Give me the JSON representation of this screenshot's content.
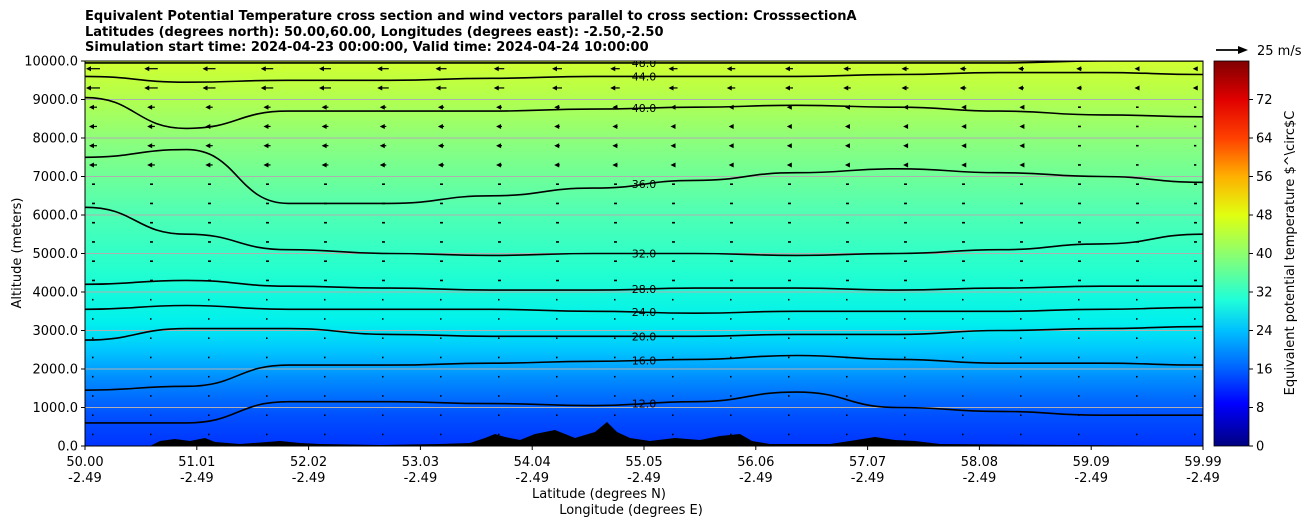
{
  "title_lines": [
    "Equivalent Potential Temperature cross section and wind vectors parallel to cross section: CrosssectionA",
    "Latitudes (degrees north): 50.00,60.00, Longitudes (degrees east): -2.50,-2.50",
    "Simulation start time: 2024-04-23 00:00:00, Valid time: 2024-04-24 10:00:00"
  ],
  "chart_data": {
    "type": "heatmap",
    "title": "Equivalent Potential Temperature cross section and wind vectors parallel to cross section: CrosssectionA",
    "ylabel": "Altitude (meters)",
    "xlabel_lines": [
      "Latitude (degrees N)",
      "Longitude (degrees E)"
    ],
    "ylim": [
      0,
      10000
    ],
    "y_ticks": [
      "0.0",
      "1000.0",
      "2000.0",
      "3000.0",
      "4000.0",
      "5000.0",
      "6000.0",
      "7000.0",
      "8000.0",
      "9000.0",
      "10000.0"
    ],
    "x_ticks": [
      {
        "lat": "50.00",
        "lon": "-2.49"
      },
      {
        "lat": "51.01",
        "lon": "-2.49"
      },
      {
        "lat": "52.02",
        "lon": "-2.49"
      },
      {
        "lat": "53.03",
        "lon": "-2.49"
      },
      {
        "lat": "54.04",
        "lon": "-2.49"
      },
      {
        "lat": "55.05",
        "lon": "-2.49"
      },
      {
        "lat": "56.06",
        "lon": "-2.49"
      },
      {
        "lat": "57.07",
        "lon": "-2.49"
      },
      {
        "lat": "58.08",
        "lon": "-2.49"
      },
      {
        "lat": "59.09",
        "lon": "-2.49"
      },
      {
        "lat": "59.99",
        "lon": "-2.49"
      }
    ],
    "colorbar": {
      "label": "Equivalent potential temperature $^\\circ$C",
      "range": [
        0,
        80
      ],
      "ticks": [
        "0",
        "8",
        "16",
        "24",
        "32",
        "40",
        "48",
        "56",
        "64",
        "72"
      ]
    },
    "quiver_key": "25 m/s",
    "grid": "horizontal",
    "contours": [
      {
        "level": 12,
        "label": "12.0",
        "alt_m": [
          600,
          600,
          1150,
          1150,
          1100,
          1050,
          1150,
          1400,
          1000,
          900,
          800,
          800
        ]
      },
      {
        "level": 16,
        "label": "16.0",
        "alt_m": [
          1450,
          1550,
          2100,
          2100,
          2150,
          2200,
          2250,
          2350,
          2250,
          2150,
          2150,
          2100
        ]
      },
      {
        "level": 20,
        "label": "20.0",
        "alt_m": [
          2750,
          3050,
          3050,
          2900,
          2850,
          2850,
          2850,
          2900,
          2900,
          3000,
          3050,
          3100
        ]
      },
      {
        "level": 24,
        "label": "24.0",
        "alt_m": [
          3550,
          3650,
          3550,
          3550,
          3550,
          3500,
          3450,
          3500,
          3500,
          3500,
          3550,
          3600
        ]
      },
      {
        "level": 28,
        "label": "28.0",
        "alt_m": [
          4200,
          4300,
          4150,
          4100,
          4050,
          4050,
          4100,
          4100,
          4050,
          4100,
          4150,
          4150
        ]
      },
      {
        "level": 32,
        "label": "32.0",
        "alt_m": [
          6200,
          5500,
          5100,
          5000,
          4950,
          5000,
          5000,
          4950,
          5000,
          5100,
          5250,
          5500
        ]
      },
      {
        "level": 36,
        "label": "36.0",
        "alt_m": [
          7500,
          7700,
          6300,
          6300,
          6500,
          6700,
          6900,
          7100,
          7200,
          7100,
          7000,
          6850
        ]
      },
      {
        "level": 40,
        "label": "40.0",
        "alt_m": [
          9050,
          8250,
          8700,
          8700,
          8700,
          8750,
          8800,
          8850,
          8800,
          8700,
          8600,
          8550
        ]
      },
      {
        "level": 44,
        "label": "44.0",
        "alt_m": [
          9600,
          9450,
          9500,
          9500,
          9550,
          9600,
          9600,
          9600,
          9650,
          9700,
          9700,
          9650
        ]
      },
      {
        "level": 48,
        "label": "48.0",
        "alt_m": [
          9950,
          9950,
          9950,
          9950,
          9950,
          9950,
          9950,
          9950,
          9950,
          9950,
          10000,
          10000
        ]
      }
    ]
  }
}
